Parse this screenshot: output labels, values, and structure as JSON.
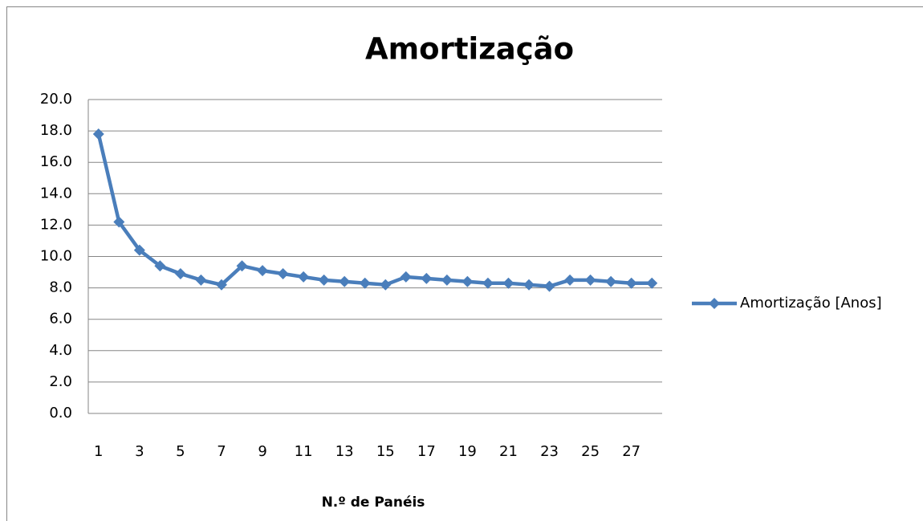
{
  "chart_data": {
    "type": "line",
    "title": "Amortização",
    "x_label": "N.º de Panéis",
    "categories": [
      "1",
      null,
      "3",
      null,
      "5",
      null,
      "7",
      null,
      "9",
      null,
      "11",
      null,
      "13",
      null,
      "15",
      null,
      "17",
      null,
      "19",
      null,
      "21",
      null,
      "23",
      null,
      "25",
      null,
      "27",
      null
    ],
    "series": [
      {
        "name": "Amortização [Anos]",
        "color": "#4a7ebb",
        "values": [
          17.8,
          12.2,
          10.4,
          9.4,
          8.9,
          8.5,
          8.2,
          9.4,
          9.1,
          8.9,
          8.7,
          8.5,
          8.4,
          8.3,
          8.2,
          8.7,
          8.6,
          8.5,
          8.4,
          8.3,
          8.3,
          8.2,
          8.1,
          8.5,
          8.5,
          8.4,
          8.3,
          8.3
        ]
      }
    ],
    "ylim": [
      0,
      20
    ],
    "yticks": [
      {
        "value": 0,
        "label": "0.0"
      },
      {
        "value": 2,
        "label": "2.0"
      },
      {
        "value": 4,
        "label": "4.0"
      },
      {
        "value": 6,
        "label": "6.0"
      },
      {
        "value": 8,
        "label": "8.0"
      },
      {
        "value": 10,
        "label": "10.0"
      },
      {
        "value": 12,
        "label": "12.0"
      },
      {
        "value": 14,
        "label": "14.0"
      },
      {
        "value": 16,
        "label": "16.0"
      },
      {
        "value": 18,
        "label": "18.0"
      },
      {
        "value": 20,
        "label": "20.0"
      }
    ],
    "grid": true,
    "legend": "right"
  }
}
